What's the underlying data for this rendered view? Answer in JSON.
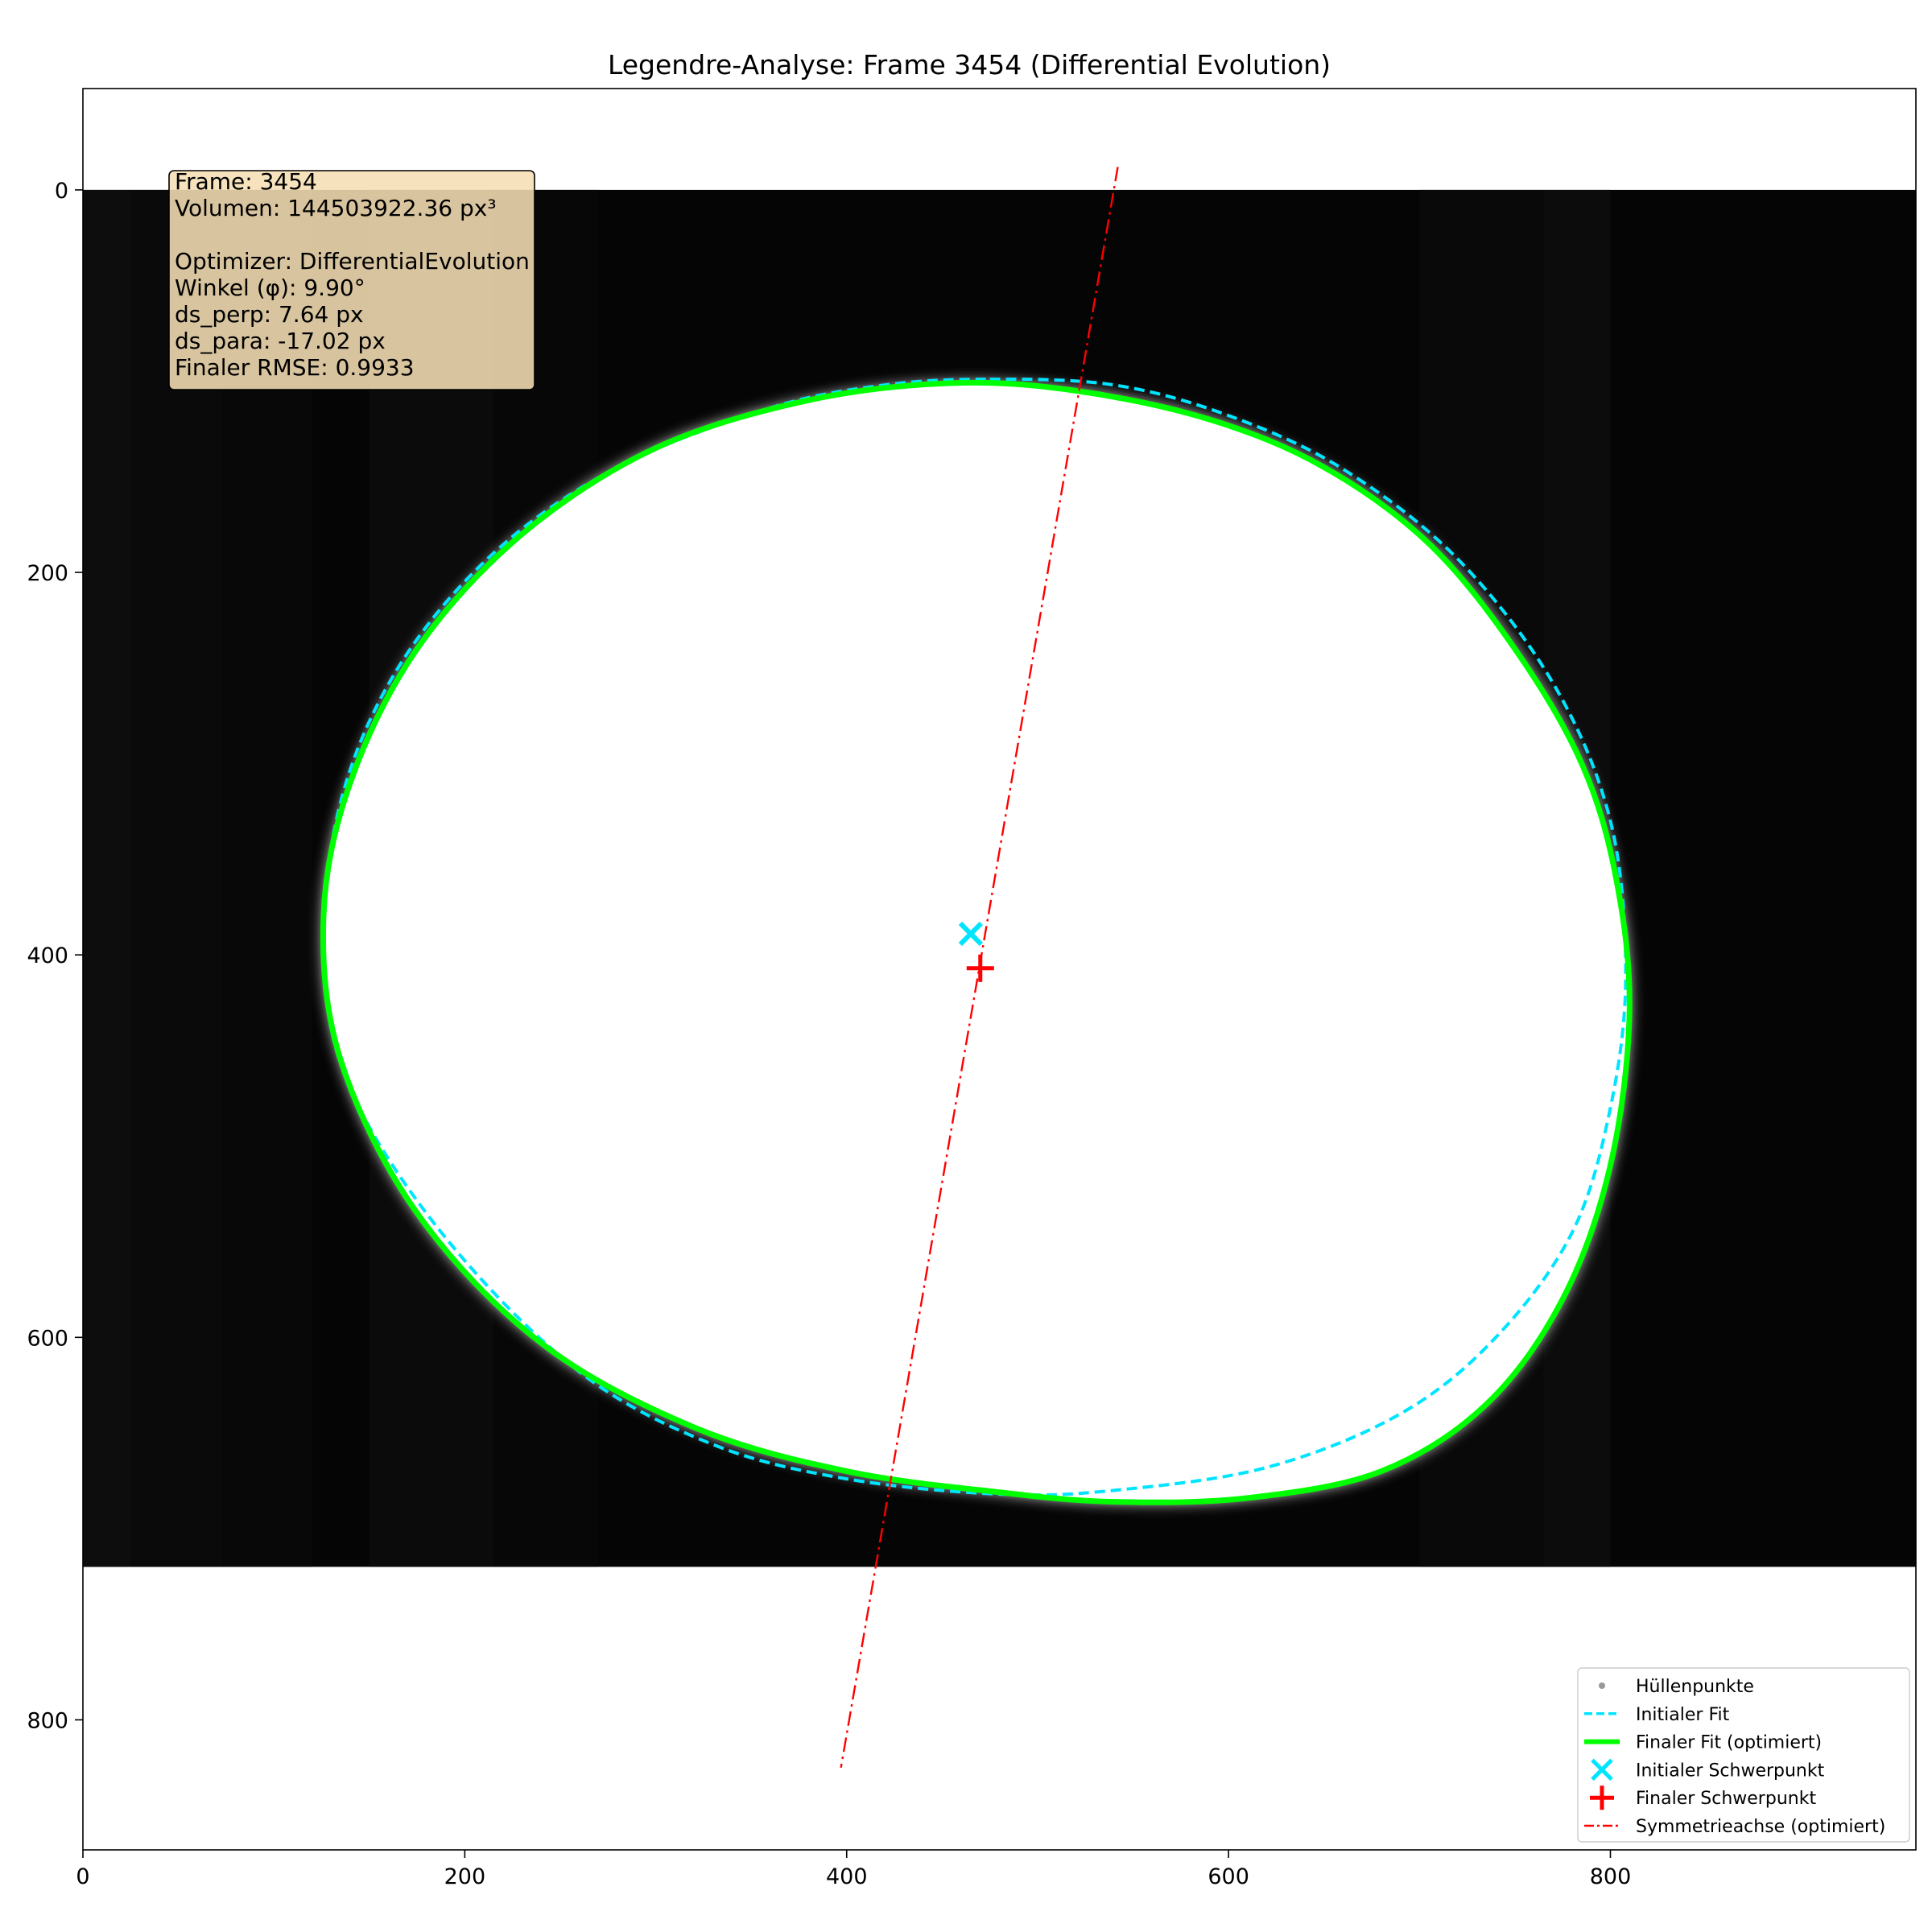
{
  "chart_data": {
    "type": "scatter",
    "title": "Legendre-Analyse: Frame 3454 (Differential Evolution)",
    "xlabel": "",
    "ylabel": "",
    "xlim": [
      0,
      960
    ],
    "ylim": [
      868,
      -53
    ],
    "y_inverted": true,
    "x_ticks": [
      0,
      200,
      400,
      600,
      800
    ],
    "y_ticks": [
      0,
      200,
      400,
      600,
      800
    ],
    "grid": false,
    "legend_position": "lower-right",
    "background_image": {
      "description_extent_x": [
        0,
        960
      ],
      "description_extent_y": [
        0,
        720
      ]
    },
    "info_box": {
      "lines": [
        "Frame: 3454",
        "Volumen: 144503922.36 px³",
        "",
        "Optimizer: DifferentialEvolution",
        "Winkel (φ): 9.90°",
        "ds_perp: 7.64 px",
        "ds_para: -17.02 px",
        "Finaler RMSE: 0.9933"
      ]
    },
    "series": [
      {
        "name": "Hüllenpunkte",
        "kind": "points",
        "color": "#999999",
        "shape_ref": "final_fit"
      },
      {
        "name": "Initialer Fit",
        "kind": "line-dashed",
        "color": "#00e5ff",
        "points": [
          [
            475,
            99
          ],
          [
            540,
            102
          ],
          [
            600,
            118
          ],
          [
            660,
            146
          ],
          [
            720,
            193
          ],
          [
            770,
            258
          ],
          [
            800,
            330
          ],
          [
            808,
            410
          ],
          [
            800,
            480
          ],
          [
            780,
            545
          ],
          [
            740,
            600
          ],
          [
            690,
            640
          ],
          [
            620,
            668
          ],
          [
            540,
            680
          ],
          [
            480,
            682
          ],
          [
            400,
            674
          ],
          [
            330,
            656
          ],
          [
            260,
            618
          ],
          [
            190,
            548
          ],
          [
            140,
            470
          ],
          [
            126,
            400
          ],
          [
            135,
            320
          ],
          [
            165,
            250
          ],
          [
            215,
            190
          ],
          [
            280,
            145
          ],
          [
            360,
            114
          ],
          [
            420,
            102
          ],
          [
            475,
            99
          ]
        ]
      },
      {
        "name": "Finaler Fit (optimiert)",
        "kind": "line-solid",
        "color": "#00ff00",
        "points": [
          [
            455,
            101
          ],
          [
            520,
            105
          ],
          [
            590,
            120
          ],
          [
            650,
            145
          ],
          [
            705,
            185
          ],
          [
            750,
            240
          ],
          [
            785,
            300
          ],
          [
            803,
            360
          ],
          [
            810,
            430
          ],
          [
            800,
            510
          ],
          [
            775,
            580
          ],
          [
            735,
            635
          ],
          [
            680,
            670
          ],
          [
            610,
            684
          ],
          [
            540,
            686
          ],
          [
            480,
            681
          ],
          [
            400,
            670
          ],
          [
            320,
            647
          ],
          [
            240,
            603
          ],
          [
            175,
            535
          ],
          [
            135,
            455
          ],
          [
            126,
            380
          ],
          [
            140,
            310
          ],
          [
            175,
            240
          ],
          [
            230,
            180
          ],
          [
            300,
            135
          ],
          [
            380,
            110
          ],
          [
            455,
            101
          ]
        ]
      },
      {
        "name": "Initialer Schwerpunkt",
        "kind": "marker-x",
        "color": "#00e5ff",
        "points": [
          [
            465,
            389
          ]
        ]
      },
      {
        "name": "Finaler Schwerpunkt",
        "kind": "marker-plus",
        "color": "#ff0000",
        "points": [
          [
            470,
            407
          ]
        ]
      },
      {
        "name": "Symmetrieachse (optimiert)",
        "kind": "line-dashdot",
        "color": "#ff0000",
        "points": [
          [
            542,
            -12
          ],
          [
            397,
            825
          ]
        ]
      }
    ]
  }
}
